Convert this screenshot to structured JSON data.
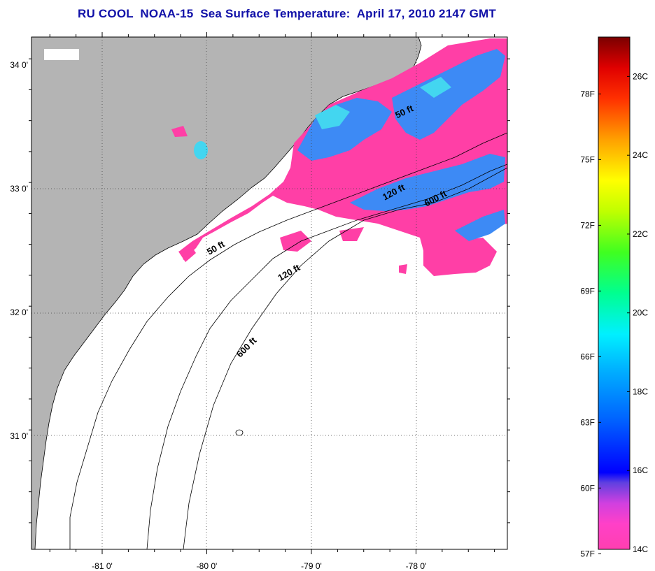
{
  "title": "RU COOL  NOAA-15  Sea Surface Temperature:  April 17, 2010 2147 GMT",
  "map": {
    "lat_ticks": [
      {
        "label": "34 0'",
        "lat": 34.0
      },
      {
        "label": "33 0'",
        "lat": 33.0
      },
      {
        "label": "32 0'",
        "lat": 32.0
      },
      {
        "label": "31 0'",
        "lat": 31.0
      }
    ],
    "lon_ticks": [
      {
        "label": "-81 0'",
        "lon": -81.0
      },
      {
        "label": "-80 0'",
        "lon": -80.0
      },
      {
        "label": "-79 0'",
        "lon": -79.0
      },
      {
        "label": "-78 0'",
        "lon": -78.0
      }
    ],
    "contour_labels": [
      {
        "text": "50 ft",
        "lat": 32.5,
        "lon": -79.9
      },
      {
        "text": "120 ft",
        "lat": 32.3,
        "lon": -79.2
      },
      {
        "text": "600 ft",
        "lat": 31.7,
        "lon": -79.6
      },
      {
        "text": "50 ft",
        "lat": 33.6,
        "lon": -78.1
      },
      {
        "text": "120 ft",
        "lat": 32.95,
        "lon": -78.2
      },
      {
        "text": "600 ft",
        "lat": 32.9,
        "lon": -77.8
      }
    ],
    "colors": {
      "land": "#b4b4b4",
      "ocean": "#ffffff",
      "cold": "#ff3fa6",
      "cool": "#3d8af5",
      "cyan": "#43d6f0"
    }
  },
  "colorbar": {
    "fahrenheit": [
      "78F",
      "75F",
      "72F",
      "69F",
      "66F",
      "63F",
      "60F",
      "57F"
    ],
    "celsius": [
      "26C",
      "24C",
      "22C",
      "20C",
      "18C",
      "16C",
      "14C"
    ],
    "range_c": [
      14,
      27
    ]
  }
}
